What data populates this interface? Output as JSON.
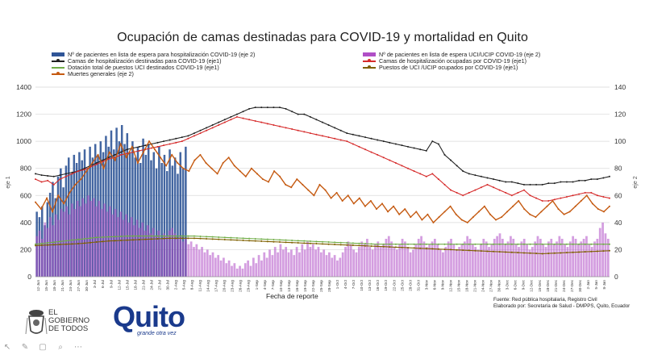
{
  "chart_data": {
    "type": "bar+line",
    "title": "Ocupación de camas destinadas para COVID-19 y mortalidad en Quito",
    "xlabel": "Fecha de reporte",
    "ylabel_left": "eje 1",
    "ylabel_right": "eje 2",
    "ylim_left": [
      0,
      1400
    ],
    "ylim_right": [
      0,
      140
    ],
    "yticks_left": [
      "0",
      "200",
      "400",
      "600",
      "800",
      "1000",
      "1200",
      "1400"
    ],
    "yticks_right": [
      "0",
      "20",
      "40",
      "60",
      "80",
      "100",
      "120",
      "140"
    ],
    "grid": true,
    "legend_placement": "top",
    "x_tick_labels": [
      "12-Jun",
      "15-Jun",
      "18-Jun",
      "21-Jun",
      "24-Jun",
      "27-Jun",
      "30-Jun",
      "3-Jul",
      "6-Jul",
      "9-Jul",
      "12-Jul",
      "15-Jul",
      "18-Jul",
      "21-Jul",
      "24-Jul",
      "27-Jul",
      "30-Jul",
      "2-Aug",
      "5-Aug",
      "8-Aug",
      "11-Aug",
      "14-Aug",
      "17-Aug",
      "20-Aug",
      "23-Aug",
      "26-Aug",
      "29-Aug",
      "1-Sep",
      "4-Sep",
      "7-Sep",
      "10-Sep",
      "13-Sep",
      "16-Sep",
      "19-Sep",
      "22-Sep",
      "25-Sep",
      "28-Sep",
      "1-Oct",
      "4-Oct",
      "7-Oct",
      "10-Oct",
      "13-Oct",
      "16-Oct",
      "19-Oct",
      "22-Oct",
      "25-Oct",
      "28-Oct",
      "31-Oct",
      "3-Nov",
      "6-Nov",
      "9-Nov",
      "12-Nov",
      "15-Nov",
      "18-Nov",
      "21-Nov",
      "24-Nov",
      "27-Nov",
      "30-Nov",
      "3-Dec",
      "6-Dec",
      "9-Dec",
      "12-Dec",
      "15-Dec",
      "18-Dec",
      "21-Dec",
      "24-Dec",
      "27-Dec",
      "30-Dec",
      "2-Jan",
      "5-Jan",
      "8-Jan"
    ],
    "series": [
      {
        "name": "Nº de pacientes en lista de espera para hospitalización COVID-19 (eje 2)",
        "kind": "bar",
        "axis": "right",
        "color": "#2f5597",
        "x_range": [
          "12-Jun",
          "8-Aug"
        ],
        "values": [
          48,
          44,
          52,
          38,
          55,
          62,
          70,
          58,
          74,
          80,
          66,
          82,
          88,
          76,
          90,
          84,
          92,
          86,
          94,
          80,
          96,
          88,
          98,
          90,
          100,
          92,
          104,
          96,
          108,
          94,
          110,
          100,
          112,
          98,
          106,
          92,
          100,
          88,
          96,
          84,
          102,
          90,
          98,
          86,
          92,
          80,
          96,
          84,
          90,
          78,
          94,
          82,
          88,
          76,
          92,
          80,
          96
        ]
      },
      {
        "name": "Nº de pacientes en lista de espera UCI/UCIP COVID-19 (eje 2)",
        "kind": "bar",
        "axis": "right",
        "color": "#b04fc6",
        "values": [
          30,
          34,
          28,
          40,
          36,
          44,
          38,
          46,
          42,
          50,
          48,
          52,
          46,
          54,
          50,
          56,
          52,
          58,
          54,
          60,
          56,
          58,
          52,
          56,
          50,
          54,
          48,
          52,
          46,
          50,
          44,
          48,
          42,
          46,
          40,
          44,
          38,
          42,
          36,
          40,
          34,
          38,
          32,
          36,
          30,
          34,
          28,
          32,
          30,
          34,
          36,
          32,
          28,
          30,
          26,
          28,
          24,
          26,
          22,
          24,
          20,
          22,
          18,
          20,
          16,
          18,
          14,
          16,
          12,
          14,
          10,
          12,
          8,
          10,
          6,
          8,
          6,
          10,
          12,
          8,
          14,
          10,
          16,
          12,
          18,
          14,
          20,
          16,
          22,
          18,
          24,
          20,
          22,
          18,
          20,
          16,
          22,
          18,
          24,
          20,
          26,
          22,
          24,
          20,
          22,
          18,
          20,
          16,
          18,
          14,
          16,
          12,
          14,
          18,
          22,
          26,
          24,
          20,
          18,
          22,
          26,
          24,
          28,
          22,
          20,
          24,
          26,
          22,
          24,
          28,
          30,
          26,
          22,
          20,
          24,
          28,
          26,
          22,
          18,
          20,
          24,
          28,
          30,
          26,
          22,
          24,
          26,
          28,
          24,
          20,
          18,
          22,
          26,
          28,
          24,
          20,
          22,
          24,
          26,
          30,
          28,
          24,
          22,
          20,
          24,
          28,
          26,
          22,
          24,
          28,
          30,
          32,
          28,
          24,
          26,
          30,
          28,
          24,
          22,
          26,
          28,
          24,
          20,
          22,
          26,
          30,
          28,
          24,
          22,
          26,
          28,
          24,
          26,
          30,
          28,
          24,
          22,
          26,
          30,
          28,
          24,
          26,
          28,
          30,
          24,
          22,
          26,
          28,
          36,
          40,
          32,
          28
        ]
      },
      {
        "name": "Camas de hospitalización destinadas para COVID-19 (eje1)",
        "kind": "line",
        "axis": "left",
        "color": "#222222",
        "values": [
          760,
          750,
          745,
          740,
          750,
          760,
          770,
          780,
          800,
          820,
          840,
          860,
          880,
          900,
          920,
          940,
          950,
          960,
          970,
          980,
          990,
          1000,
          1010,
          1020,
          1030,
          1040,
          1060,
          1080,
          1100,
          1120,
          1140,
          1160,
          1180,
          1200,
          1220,
          1240,
          1250,
          1250,
          1250,
          1250,
          1250,
          1240,
          1220,
          1200,
          1200,
          1180,
          1160,
          1140,
          1120,
          1100,
          1080,
          1060,
          1050,
          1040,
          1030,
          1020,
          1010,
          1000,
          990,
          980,
          970,
          960,
          950,
          940,
          930,
          1000,
          980,
          900,
          860,
          820,
          780,
          760,
          750,
          740,
          730,
          720,
          710,
          700,
          700,
          690,
          680,
          680,
          680,
          680,
          690,
          690,
          700,
          700,
          700,
          710,
          710,
          720,
          720,
          730,
          740
        ]
      },
      {
        "name": "Camas de hospitalización ocupadas por COVID-19 (eje1)",
        "kind": "line",
        "axis": "left",
        "color": "#d62b2b",
        "values": [
          720,
          700,
          710,
          680,
          720,
          740,
          760,
          780,
          790,
          810,
          830,
          850,
          870,
          880,
          900,
          910,
          920,
          930,
          940,
          950,
          960,
          970,
          980,
          990,
          1000,
          1020,
          1040,
          1060,
          1080,
          1100,
          1120,
          1140,
          1160,
          1180,
          1170,
          1160,
          1150,
          1140,
          1130,
          1120,
          1110,
          1100,
          1090,
          1080,
          1070,
          1060,
          1050,
          1040,
          1030,
          1020,
          1010,
          1000,
          980,
          960,
          940,
          920,
          900,
          880,
          860,
          840,
          820,
          800,
          780,
          760,
          740,
          760,
          720,
          680,
          640,
          620,
          600,
          620,
          640,
          660,
          680,
          660,
          640,
          620,
          600,
          620,
          640,
          600,
          580,
          560,
          560,
          570,
          580,
          590,
          600,
          610,
          620,
          620,
          600,
          590,
          580
        ]
      },
      {
        "name": "Dotación total de puestos UCI destinados COVID-19 (eje1)",
        "kind": "line",
        "axis": "left",
        "color": "#70ad47",
        "values": [
          240,
          245,
          250,
          255,
          260,
          265,
          270,
          275,
          280,
          285,
          290,
          292,
          294,
          296,
          298,
          300,
          300,
          300,
          300,
          300,
          300,
          300,
          300,
          300,
          300,
          300,
          300,
          298,
          296,
          294,
          292,
          290,
          288,
          286,
          284,
          282,
          280,
          278,
          276,
          274,
          272,
          270,
          268,
          266,
          264,
          262,
          260,
          258,
          256,
          254,
          252,
          250,
          248,
          246,
          244,
          242,
          240,
          240,
          240,
          240,
          240,
          240,
          240,
          240,
          240,
          240,
          240,
          240,
          240,
          240,
          240,
          240,
          240,
          240,
          240,
          240,
          240,
          240,
          240,
          240,
          240,
          240,
          240,
          240,
          240,
          240,
          240,
          240,
          240,
          240,
          240,
          240,
          240,
          240,
          240
        ]
      },
      {
        "name": "Puestos de UCI /UCIP ocupados por COVID-19 (eje1)",
        "kind": "line",
        "axis": "left",
        "color": "#7f6000",
        "values": [
          230,
          232,
          234,
          236,
          238,
          240,
          242,
          244,
          248,
          252,
          256,
          260,
          264,
          266,
          268,
          270,
          272,
          274,
          276,
          278,
          280,
          282,
          284,
          284,
          284,
          284,
          284,
          282,
          280,
          278,
          276,
          274,
          272,
          270,
          268,
          266,
          264,
          262,
          260,
          258,
          256,
          254,
          252,
          250,
          248,
          246,
          244,
          242,
          240,
          238,
          236,
          234,
          232,
          230,
          228,
          226,
          224,
          222,
          220,
          218,
          216,
          214,
          212,
          210,
          208,
          206,
          204,
          202,
          200,
          198,
          196,
          194,
          192,
          190,
          188,
          186,
          184,
          182,
          180,
          178,
          176,
          174,
          172,
          170,
          172,
          174,
          176,
          178,
          180,
          182,
          184,
          186,
          188,
          190,
          192
        ]
      },
      {
        "name": "Muertes generales (eje 2)",
        "kind": "line",
        "axis": "right",
        "color": "#c55a11",
        "values": [
          55,
          50,
          58,
          48,
          60,
          54,
          62,
          68,
          72,
          78,
          84,
          90,
          80,
          92,
          86,
          98,
          88,
          96,
          84,
          92,
          100,
          94,
          88,
          82,
          90,
          84,
          80,
          78,
          86,
          90,
          84,
          80,
          76,
          84,
          88,
          82,
          78,
          74,
          80,
          76,
          72,
          70,
          78,
          74,
          68,
          66,
          72,
          68,
          64,
          60,
          68,
          64,
          58,
          62,
          56,
          60,
          54,
          58,
          52,
          56,
          50,
          54,
          48,
          52,
          46,
          50,
          44,
          48,
          42,
          46,
          40,
          44,
          48,
          52,
          46,
          42,
          40,
          44,
          48,
          52,
          46,
          42,
          44,
          48,
          52,
          56,
          50,
          46,
          44,
          48,
          52,
          56,
          50,
          46,
          48,
          52,
          56,
          60,
          54,
          50,
          48,
          52
        ]
      }
    ]
  },
  "source": {
    "line1": "Fuente: Red pública hospitalaria, Registro Civil",
    "line2": "Elaborado por: Secretaría de Salud - DMPPS, Quito, Ecuador"
  },
  "logos": {
    "gobierno": [
      "EL",
      "GOBIERNO",
      "DE TODOS"
    ],
    "quito": "Quito",
    "quito_tagline": "grande otra vez"
  }
}
